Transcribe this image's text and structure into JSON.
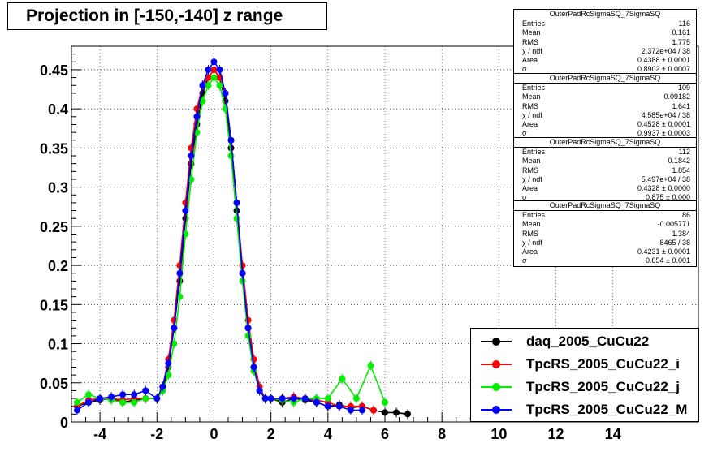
{
  "title": "Projection in [-150,-140] z range",
  "chart_data": {
    "type": "scatter",
    "xlim": [
      -5,
      17
    ],
    "ylim": [
      0,
      0.48
    ],
    "x_ticks": [
      "-4",
      "-2",
      "0",
      "2",
      "4",
      "6",
      "8",
      "10",
      "12",
      "14"
    ],
    "x_tick_values": [
      -4,
      -2,
      0,
      2,
      4,
      6,
      8,
      10,
      12,
      14
    ],
    "y_ticks": [
      "0",
      "0.05",
      "0.1",
      "0.15",
      "0.2",
      "0.25",
      "0.3",
      "0.35",
      "0.4",
      "0.45"
    ],
    "y_tick_values": [
      0,
      0.05,
      0.1,
      0.15,
      0.2,
      0.25,
      0.3,
      0.35,
      0.4,
      0.45
    ],
    "grid": true,
    "legend_position": "bottom-right",
    "series": [
      {
        "name": "daq_2005_CuCu22",
        "color": "#000000",
        "x": [
          -4.8,
          -4.4,
          -4.0,
          -3.6,
          -3.2,
          -2.8,
          -2.4,
          -2.0,
          -1.8,
          -1.6,
          -1.4,
          -1.2,
          -1.0,
          -0.8,
          -0.6,
          -0.4,
          -0.2,
          0.0,
          0.2,
          0.4,
          0.6,
          0.8,
          1.0,
          1.2,
          1.4,
          1.6,
          1.8,
          2.0,
          2.4,
          2.8,
          3.2,
          3.6,
          4.0,
          4.4,
          4.8,
          5.2,
          5.6,
          6.0,
          6.4,
          6.8
        ],
        "y": [
          0.02,
          0.025,
          0.028,
          0.03,
          0.025,
          0.028,
          0.03,
          0.03,
          0.04,
          0.07,
          0.12,
          0.18,
          0.26,
          0.33,
          0.38,
          0.42,
          0.44,
          0.45,
          0.44,
          0.41,
          0.35,
          0.27,
          0.19,
          0.12,
          0.07,
          0.04,
          0.03,
          0.03,
          0.025,
          0.03,
          0.028,
          0.025,
          0.02,
          0.022,
          0.018,
          0.02,
          0.015,
          0.012,
          0.012,
          0.01
        ]
      },
      {
        "name": "TpcRS_2005_CuCu22_i",
        "color": "#ff0000",
        "x": [
          -4.8,
          -4.4,
          -4.0,
          -3.6,
          -3.2,
          -2.8,
          -2.4,
          -2.0,
          -1.8,
          -1.6,
          -1.4,
          -1.2,
          -1.0,
          -0.8,
          -0.6,
          -0.4,
          -0.2,
          0.0,
          0.2,
          0.4,
          0.6,
          0.8,
          1.0,
          1.2,
          1.4,
          1.6,
          1.8,
          2.0,
          2.4,
          2.8,
          3.2,
          3.6,
          4.0,
          4.4,
          4.8,
          5.2,
          5.6
        ],
        "y": [
          0.02,
          0.028,
          0.03,
          0.03,
          0.028,
          0.03,
          0.03,
          0.03,
          0.045,
          0.08,
          0.13,
          0.2,
          0.28,
          0.35,
          0.4,
          0.43,
          0.44,
          0.45,
          0.44,
          0.42,
          0.36,
          0.28,
          0.2,
          0.13,
          0.08,
          0.045,
          0.03,
          0.03,
          0.03,
          0.032,
          0.03,
          0.028,
          0.025,
          0.02,
          0.02,
          0.02,
          0.015
        ]
      },
      {
        "name": "TpcRS_2005_CuCu22_j",
        "color": "#00ee00",
        "x": [
          -4.8,
          -4.4,
          -4.0,
          -3.6,
          -3.2,
          -2.8,
          -2.4,
          -2.0,
          -1.8,
          -1.6,
          -1.4,
          -1.2,
          -1.0,
          -0.8,
          -0.6,
          -0.4,
          -0.2,
          0.0,
          0.2,
          0.4,
          0.6,
          0.8,
          1.0,
          1.2,
          1.4,
          1.6,
          1.8,
          2.0,
          2.4,
          2.8,
          3.2,
          3.6,
          4.0,
          4.5,
          5.0,
          5.5,
          6.0
        ],
        "y": [
          0.025,
          0.035,
          0.03,
          0.028,
          0.025,
          0.025,
          0.03,
          0.03,
          0.04,
          0.06,
          0.1,
          0.16,
          0.24,
          0.31,
          0.37,
          0.41,
          0.43,
          0.44,
          0.43,
          0.4,
          0.34,
          0.26,
          0.18,
          0.11,
          0.065,
          0.04,
          0.03,
          0.03,
          0.028,
          0.025,
          0.03,
          0.03,
          0.03,
          0.055,
          0.03,
          0.072,
          0.025
        ]
      },
      {
        "name": "TpcRS_2005_CuCu22_M",
        "color": "#0000ff",
        "x": [
          -4.8,
          -4.4,
          -4.0,
          -3.6,
          -3.2,
          -2.8,
          -2.4,
          -2.0,
          -1.8,
          -1.6,
          -1.4,
          -1.2,
          -1.0,
          -0.8,
          -0.6,
          -0.4,
          -0.2,
          0.0,
          0.2,
          0.4,
          0.6,
          0.8,
          1.0,
          1.2,
          1.4,
          1.6,
          1.8,
          2.0,
          2.4,
          2.8,
          3.2,
          3.6,
          4.0,
          4.4,
          4.8,
          5.2
        ],
        "y": [
          0.015,
          0.025,
          0.03,
          0.032,
          0.035,
          0.035,
          0.04,
          0.03,
          0.045,
          0.075,
          0.12,
          0.19,
          0.27,
          0.34,
          0.39,
          0.43,
          0.45,
          0.46,
          0.45,
          0.42,
          0.36,
          0.28,
          0.19,
          0.12,
          0.07,
          0.04,
          0.03,
          0.03,
          0.03,
          0.03,
          0.03,
          0.025,
          0.02,
          0.02,
          0.015,
          0.015
        ]
      }
    ]
  },
  "stats_boxes": [
    {
      "name": "OuterPadRcSigmaSQ_7SigmaSQ",
      "rows": [
        {
          "label": "Entries",
          "value": "116"
        },
        {
          "label": "Mean",
          "value": "0.161"
        },
        {
          "label": "RMS",
          "value": "1.775"
        },
        {
          "label": "χ  / ndf",
          "value": "2.372e+04 / 38"
        },
        {
          "label": "Area",
          "value": "0.4388 ± 0.0001"
        },
        {
          "label": "σ",
          "value": "0.8902 ± 0.0007"
        }
      ]
    },
    {
      "name": "OuterPadRcSigmaSQ_7SigmaSQ",
      "rows": [
        {
          "label": "Entries",
          "value": "109"
        },
        {
          "label": "Mean",
          "value": "0.09182"
        },
        {
          "label": "RMS",
          "value": "1.641"
        },
        {
          "label": "χ  / ndf",
          "value": "4.585e+04 / 38"
        },
        {
          "label": "Area",
          "value": "0.4528 ± 0.0001"
        },
        {
          "label": "σ",
          "value": "0.9937 ± 0.0003"
        }
      ]
    },
    {
      "name": "OuterPadRcSigmaSQ_7SigmaSQ",
      "rows": [
        {
          "label": "Entries",
          "value": "112"
        },
        {
          "label": "Mean",
          "value": "0.1842"
        },
        {
          "label": "RMS",
          "value": "1.854"
        },
        {
          "label": "χ  / ndf",
          "value": "5.497e+04 / 38"
        },
        {
          "label": "Area",
          "value": "0.4328 ± 0.0000"
        },
        {
          "label": "σ",
          "value": "0.875 ± 0.000"
        }
      ]
    },
    {
      "name": "OuterPadRcSigmaSQ_7SigmaSQ",
      "rows": [
        {
          "label": "Entries",
          "value": "86"
        },
        {
          "label": "Mean",
          "value": "-0.005771"
        },
        {
          "label": "RMS",
          "value": "1.384"
        },
        {
          "label": "χ  / ndf",
          "value": "8465 / 38"
        },
        {
          "label": "Area",
          "value": "0.4231 ± 0.0001"
        },
        {
          "label": "σ",
          "value": "0.854 ± 0.001"
        }
      ]
    }
  ]
}
